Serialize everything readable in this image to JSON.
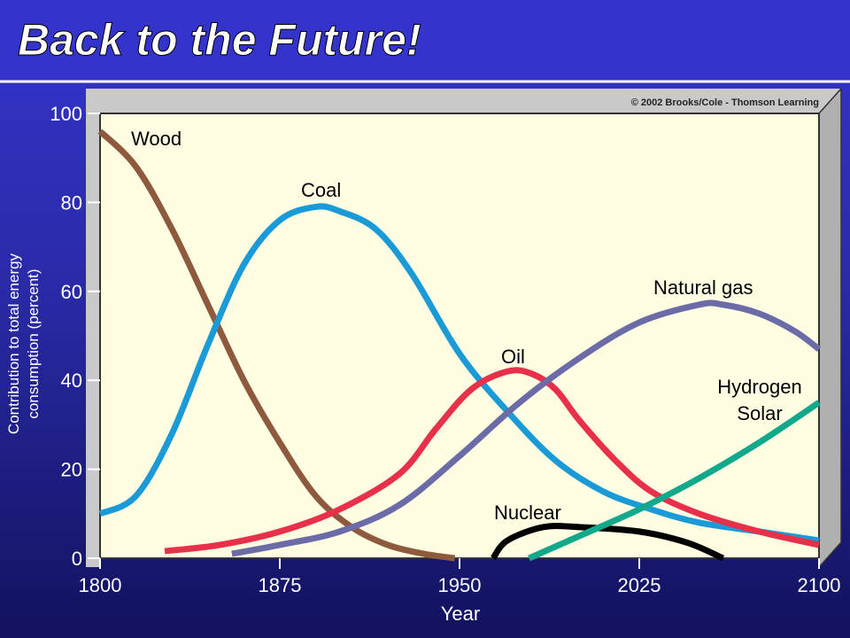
{
  "chart_data": {
    "type": "line",
    "title": "Back to the Future!",
    "credit": "© 2002 Brooks/Cole - Thomson Learning",
    "x_label": "Year",
    "y_label": "Contribution to total energy consumption (percent)",
    "xlim": [
      1800,
      2100
    ],
    "xticks": [
      1800,
      1875,
      1950,
      2025,
      2100
    ],
    "ylim": [
      0,
      100
    ],
    "yticks": [
      0,
      20,
      40,
      60,
      80,
      100
    ],
    "series": [
      {
        "name": "Wood",
        "color": "#8e5a3e",
        "x": [
          1800,
          1815,
          1830,
          1845,
          1860,
          1875,
          1890,
          1905,
          1920,
          1935,
          1948
        ],
        "values": [
          96,
          88,
          74,
          57,
          40,
          26,
          14,
          7,
          3,
          1,
          0
        ]
      },
      {
        "name": "Coal",
        "color": "#1a9ad6",
        "x": [
          1800,
          1815,
          1830,
          1845,
          1860,
          1875,
          1890,
          1900,
          1915,
          1930,
          1950,
          1970,
          1990,
          2010,
          2030,
          2050,
          2075,
          2100
        ],
        "values": [
          10,
          14,
          28,
          48,
          66,
          76,
          79,
          78,
          74,
          64,
          46,
          33,
          22,
          15,
          11,
          8,
          6,
          4
        ]
      },
      {
        "name": "Oil",
        "color": "#e8304a",
        "x": [
          1827,
          1850,
          1875,
          1900,
          1925,
          1940,
          1955,
          1970,
          1980,
          1990,
          2000,
          2015,
          2030,
          2050,
          2075,
          2100
        ],
        "values": [
          1.6,
          3,
          6,
          11,
          19,
          29,
          38,
          42,
          41.5,
          38,
          31,
          22,
          15,
          10,
          6,
          3
        ]
      },
      {
        "name": "Natural gas",
        "color": "#6b6ba8",
        "x": [
          1855,
          1875,
          1900,
          1925,
          1950,
          1975,
          2000,
          2025,
          2050,
          2060,
          2075,
          2090,
          2100
        ],
        "values": [
          1,
          3,
          6,
          12,
          23,
          35,
          45,
          53,
          57,
          57,
          55,
          51,
          47
        ]
      },
      {
        "name": "Nuclear",
        "color": "#000000",
        "x": [
          1964,
          1970,
          1985,
          2000,
          2025,
          2045,
          2060
        ],
        "values": [
          0,
          4,
          7,
          7,
          6,
          3.5,
          0
        ]
      },
      {
        "name": "Hydrogen Solar",
        "color": "#11a88c",
        "x": [
          1979,
          2000,
          2025,
          2050,
          2075,
          2100
        ],
        "values": [
          0,
          5,
          11,
          18,
          26,
          35
        ]
      }
    ]
  }
}
